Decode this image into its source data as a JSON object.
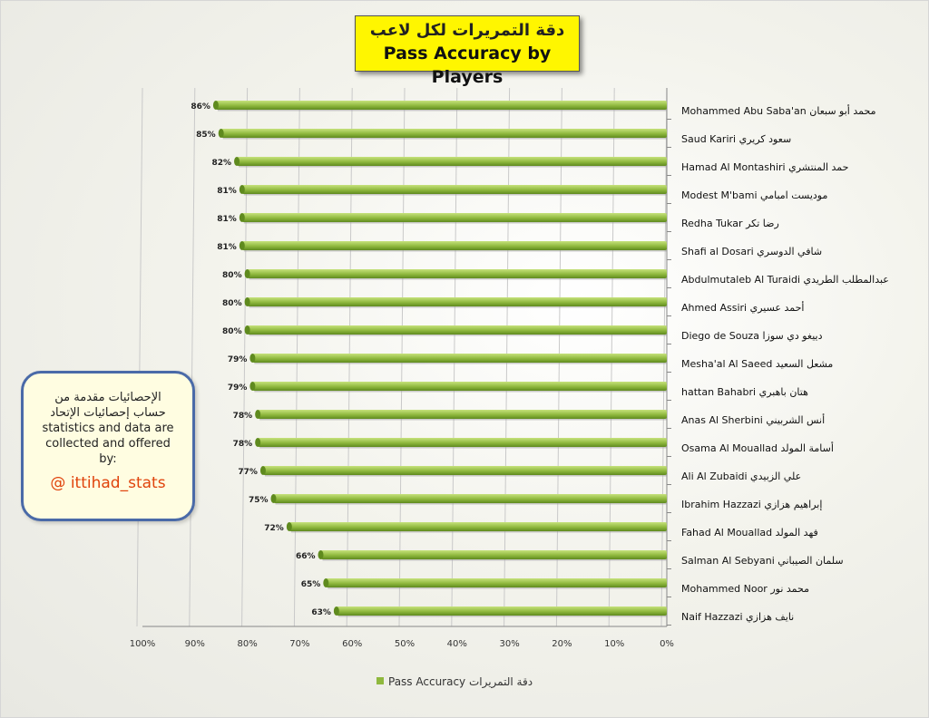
{
  "title": {
    "arabic": "دقة التمريرات لكل لاعب",
    "english": "Pass Accuracy by Players"
  },
  "info_box": {
    "lines": [
      "الإحصائيات مقدمة من",
      "حساب إحصائيات الإتحاد",
      "statistics and data are",
      "collected and offered",
      "by:"
    ],
    "handle": "@ ittihad_stats"
  },
  "colors": {
    "bar": "#8fb83e",
    "bar_dark": "#5f8a1e",
    "bar_light": "#c6e27c",
    "title_bg": "#fff600",
    "handle": "#e0430c",
    "info_border": "#4a6aa8"
  },
  "chart_data": {
    "type": "bar",
    "orientation": "horizontal",
    "x_reversed": true,
    "xlim": [
      0,
      100
    ],
    "x_ticks": [
      "100%",
      "90%",
      "80%",
      "70%",
      "60%",
      "50%",
      "40%",
      "30%",
      "20%",
      "10%",
      "0%"
    ],
    "grid": "vertical gridlines",
    "legend_position": "bottom",
    "categories": [
      "Mohammed Abu Saba'an محمد أبو سبعان",
      "Saud Kariri سعود كريري",
      "Hamad Al Montashiri حمد المنتشري",
      "Modest M'bami موديست امبامي",
      "Redha Tukar رضا تكر",
      "Shafi al Dosari شافي الدوسري",
      "Abdulmutaleb Al Turaidi عبدالمطلب الطريدي",
      "Ahmed Assiri أحمد عسيري",
      "Diego de Souza دييغو دي سوزا",
      "Mesha'al Al Saeed مشعل السعيد",
      "hattan Bahabri هتان باهبري",
      "Anas Al Sherbini أنس الشربيني",
      "Osama Al Mouallad أسامة المولد",
      "Ali Al Zubaidi علي الزبيدي",
      "Ibrahim Hazzazi إبراهيم هزازي",
      "Fahad Al Mouallad فهد المولد",
      "Salman Al Sebyani سلمان الصيباني",
      "Mohammed Noor محمد نور",
      "Naif Hazzazi نايف هزازي"
    ],
    "series": [
      {
        "name": "Pass Accuracy دقة التمريرات",
        "values": [
          86,
          85,
          82,
          81,
          81,
          81,
          80,
          80,
          80,
          79,
          79,
          78,
          78,
          77,
          75,
          72,
          66,
          65,
          63
        ],
        "data_labels": [
          "86%",
          "85%",
          "82%",
          "81%",
          "81%",
          "81%",
          "80%",
          "80%",
          "80%",
          "79%",
          "79%",
          "78%",
          "78%",
          "77%",
          "75%",
          "72%",
          "66%",
          "65%",
          "63%"
        ]
      }
    ]
  }
}
